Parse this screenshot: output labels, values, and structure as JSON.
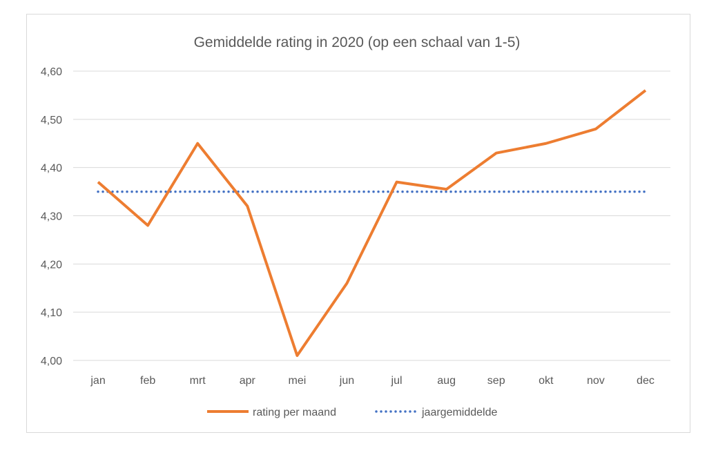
{
  "chart_data": {
    "type": "line",
    "title": "Gemiddelde rating in 2020 (op een schaal van 1-5)",
    "xlabel": "",
    "ylabel": "",
    "categories": [
      "jan",
      "feb",
      "mrt",
      "apr",
      "mei",
      "jun",
      "jul",
      "aug",
      "sep",
      "okt",
      "nov",
      "dec"
    ],
    "ylim": [
      4.0,
      4.6
    ],
    "yticks": [
      "4,00",
      "4,10",
      "4,20",
      "4,30",
      "4,40",
      "4,50",
      "4,60"
    ],
    "grid": true,
    "legend_position": "bottom",
    "series": [
      {
        "name": "rating per maand",
        "color": "#ED7D31",
        "style": "solid",
        "values": [
          4.37,
          4.28,
          4.45,
          4.32,
          4.01,
          4.16,
          4.37,
          4.355,
          4.43,
          4.45,
          4.48,
          4.56
        ]
      },
      {
        "name": "jaargemiddelde",
        "color": "#4472C4",
        "style": "dotted",
        "values": [
          4.35,
          4.35,
          4.35,
          4.35,
          4.35,
          4.35,
          4.35,
          4.35,
          4.35,
          4.35,
          4.35,
          4.35
        ]
      }
    ]
  }
}
